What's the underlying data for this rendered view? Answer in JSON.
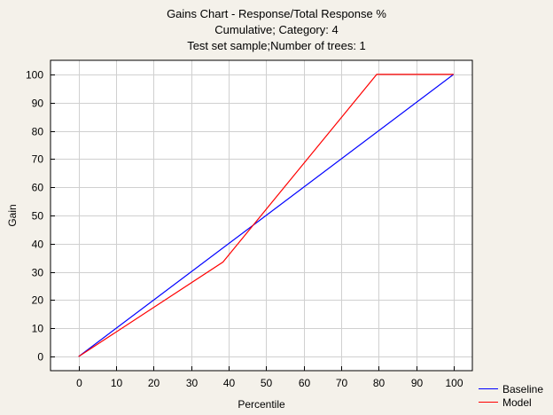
{
  "chart_data": {
    "type": "line",
    "title_lines": [
      "Gains Chart - Response/Total Response %",
      "Cumulative; Category: 4",
      "Test set sample;Number of trees: 1"
    ],
    "xlabel": "Percentile",
    "ylabel": "Gain",
    "xlim": [
      -7.5,
      105
    ],
    "ylim": [
      -5,
      105
    ],
    "xticks": [
      0,
      10,
      20,
      30,
      40,
      50,
      60,
      70,
      80,
      90,
      100
    ],
    "yticks": [
      0,
      10,
      20,
      30,
      40,
      50,
      60,
      70,
      80,
      90,
      100
    ],
    "grid": true,
    "legend_position": "bottom-right",
    "series": [
      {
        "name": "Baseline",
        "color": "#0000ff",
        "points": [
          [
            0,
            0
          ],
          [
            100,
            100
          ]
        ]
      },
      {
        "name": "Model",
        "color": "#ff0000",
        "points": [
          [
            0,
            0
          ],
          [
            38.5,
            33.5
          ],
          [
            79.5,
            100
          ],
          [
            100,
            100
          ]
        ]
      }
    ]
  }
}
